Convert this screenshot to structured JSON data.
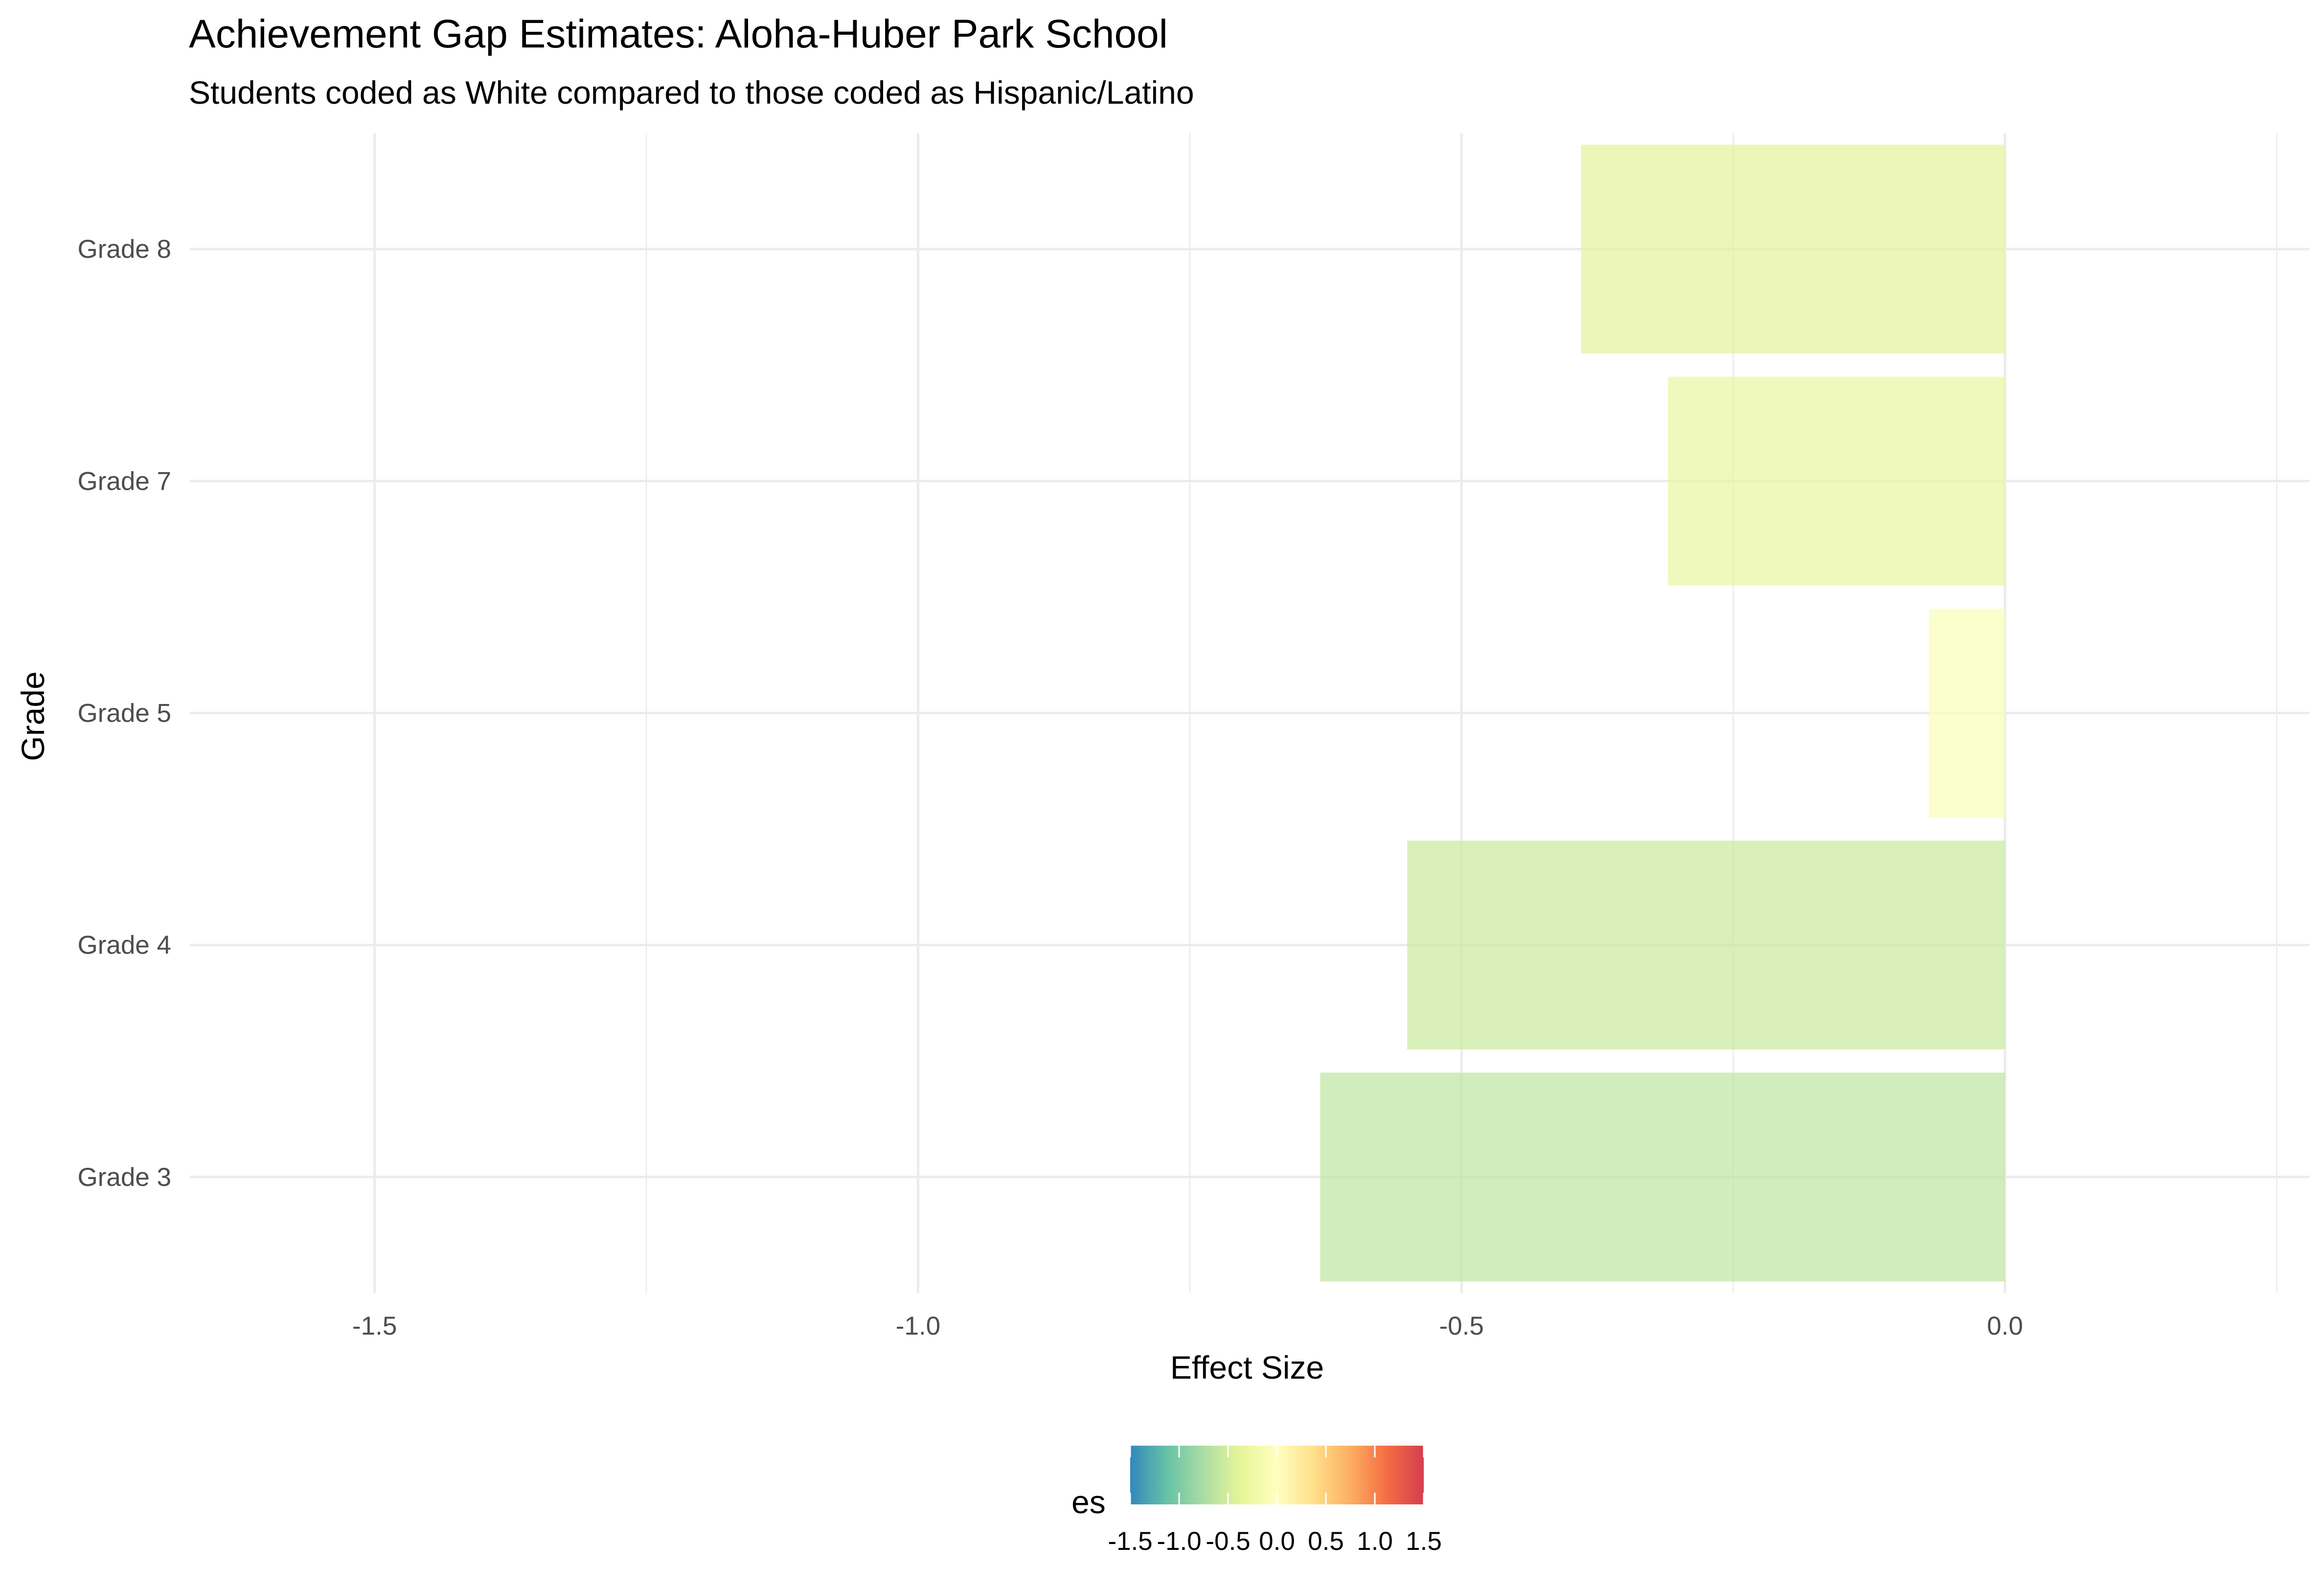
{
  "chart_data": {
    "type": "bar",
    "orientation": "horizontal",
    "title": "Achievement Gap Estimates: Aloha-Huber Park School",
    "subtitle": "Students coded as White compared to those coded as Hispanic/Latino",
    "xlabel": "Effect Size",
    "ylabel": "Grade",
    "categories": [
      "Grade 3",
      "Grade 4",
      "Grade 5",
      "Grade 7",
      "Grade 8"
    ],
    "values": [
      -0.63,
      -0.55,
      -0.07,
      -0.31,
      -0.39
    ],
    "xlim": [
      -1.67,
      0.28
    ],
    "x_ticks": [
      -1.5,
      -1.0,
      -0.5,
      0.0
    ],
    "x_tick_labels": [
      "-1.5",
      "-1.0",
      "-0.5",
      "0.0"
    ],
    "grid": true,
    "legend": {
      "title": "es",
      "position": "bottom",
      "type": "colorbar",
      "range": [
        -1.5,
        1.5
      ],
      "breaks": [
        -1.5,
        -1.0,
        -0.5,
        0.0,
        0.5,
        1.0,
        1.5
      ],
      "labels": [
        "-1.5",
        "-1.0",
        "-0.5",
        "0.0",
        "0.5",
        "1.0",
        "1.5"
      ],
      "palette": [
        "#3288bd",
        "#66c2a5",
        "#abdda4",
        "#e6f598",
        "#ffffbf",
        "#fee08b",
        "#fdae61",
        "#f46d43",
        "#d53e4f"
      ]
    }
  }
}
